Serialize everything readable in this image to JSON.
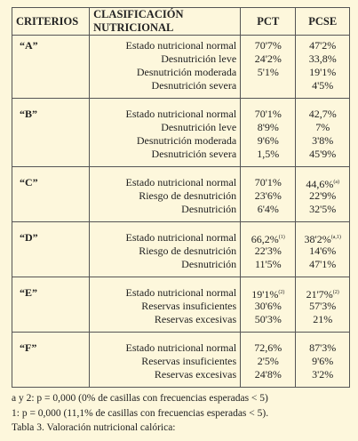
{
  "table": {
    "header": [
      "CRITERIOS",
      "CLASIFICACIÓN NUTRICIONAL",
      "PCT",
      "PCSE"
    ],
    "groups": [
      {
        "label": "“A”",
        "rows": [
          {
            "class": "Estado nutricional normal",
            "pct": {
              "text": "70'7%"
            },
            "pcse": {
              "text": "47'2%"
            }
          },
          {
            "class": "Desnutrición leve",
            "pct": {
              "text": "24'2%"
            },
            "pcse": {
              "text": "33,8%"
            }
          },
          {
            "class": "Desnutrición moderada",
            "pct": {
              "text": "5'1%"
            },
            "pcse": {
              "text": "19'1%"
            }
          },
          {
            "class": "Desnutrición severa",
            "pct": null,
            "pcse": {
              "text": "4'5%"
            }
          }
        ]
      },
      {
        "label": "“B”",
        "rows": [
          {
            "class": "Estado nutricional normal",
            "pct": {
              "text": "70'1%"
            },
            "pcse": {
              "text": "42,7%"
            }
          },
          {
            "class": "Desnutrición leve",
            "pct": {
              "text": "8'9%"
            },
            "pcse": {
              "text": "7%"
            }
          },
          {
            "class": "Desnutrición moderada",
            "pct": {
              "text": "9'6%"
            },
            "pcse": {
              "text": "3'8%"
            }
          },
          {
            "class": "Desnutrición severa",
            "pct": {
              "text": "1,5%"
            },
            "pcse": {
              "text": "45'9%"
            }
          }
        ]
      },
      {
        "label": "“C”",
        "rows": [
          {
            "class": "Estado nutricional normal",
            "pct": {
              "text": "70'1%"
            },
            "pcse": {
              "text": "44,6%",
              "sup": "(a)"
            }
          },
          {
            "class": "Riesgo de desnutrición",
            "pct": {
              "text": "23'6%"
            },
            "pcse": {
              "text": "22'9%"
            }
          },
          {
            "class": "Desnutrición",
            "pct": {
              "text": "6'4%"
            },
            "pcse": {
              "text": "32'5%"
            }
          }
        ]
      },
      {
        "label": "“D”",
        "rows": [
          {
            "class": "Estado nutricional normal",
            "pct": {
              "text": "66,2%",
              "sup": "(1)"
            },
            "pcse": {
              "text": "38'2%",
              "sup": "(a,1)"
            }
          },
          {
            "class": "Riesgo de desnutrición",
            "pct": {
              "text": "22'3%"
            },
            "pcse": {
              "text": "14'6%"
            }
          },
          {
            "class": "Desnutrición",
            "pct": {
              "text": "11'5%"
            },
            "pcse": {
              "text": "47'1%"
            }
          }
        ]
      },
      {
        "label": "“E”",
        "rows": [
          {
            "class": "Estado nutricional normal",
            "pct": {
              "text": "19'1%",
              "sup": "(2)"
            },
            "pcse": {
              "text": "21'7%",
              "sup": "(2)"
            }
          },
          {
            "class": "Reservas insuficientes",
            "pct": {
              "text": "30'6%"
            },
            "pcse": {
              "text": "57'3%"
            }
          },
          {
            "class": "Reservas excesivas",
            "pct": {
              "text": "50'3%"
            },
            "pcse": {
              "text": "21%"
            }
          }
        ]
      },
      {
        "label": "“F”",
        "rows": [
          {
            "class": "Estado nutricional normal",
            "pct": {
              "text": "72,6%"
            },
            "pcse": {
              "text": "87'3%"
            }
          },
          {
            "class": "Reservas insuficientes",
            "pct": {
              "text": "2'5%"
            },
            "pcse": {
              "text": "9'6%"
            }
          },
          {
            "class": "Reservas excesivas",
            "pct": {
              "text": "24'8%"
            },
            "pcse": {
              "text": "3'2%"
            }
          }
        ]
      }
    ]
  },
  "notes": [
    "a y 2: p = 0,000 (0% de casillas con frecuencias esperadas < 5)",
    "1: p = 0,000 (11,1% de casillas con frecuencias esperadas < 5).",
    "Tabla 3. Valoración nutricional calórica:"
  ]
}
